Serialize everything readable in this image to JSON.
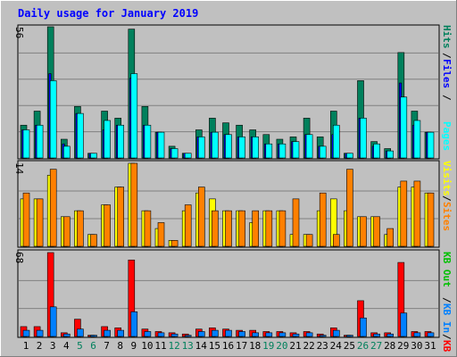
{
  "title": "Daily usage for January 2019",
  "colors": {
    "background": "#c0c0c0",
    "title": "#0000ff",
    "grid": "#808080",
    "hits": "#00805c",
    "files": "#0000ff",
    "pages": "#00ffff",
    "visits": "#ffff00",
    "sites": "#ff8000",
    "kbin": "#0080ff",
    "kbout": "#00c000",
    "kbf": "#ff0000",
    "weekend_label": "#00805c",
    "weekday_label": "#000000"
  },
  "chart_data": [
    {
      "type": "bar",
      "name": "hits-files-pages",
      "ymax_label": "56",
      "ylim": [
        0,
        56
      ],
      "legend": [
        "Hits",
        "Files",
        "Pages"
      ],
      "categories": [
        "1",
        "2",
        "3",
        "4",
        "5",
        "6",
        "7",
        "8",
        "9",
        "10",
        "11",
        "12",
        "13",
        "14",
        "15",
        "16",
        "17",
        "18",
        "19",
        "20",
        "21",
        "22",
        "23",
        "24",
        "25",
        "26",
        "27",
        "28",
        "29",
        "30",
        "31"
      ],
      "weekend_days": [
        "5",
        "6",
        "12",
        "13",
        "19",
        "20",
        "26",
        "27"
      ],
      "series": [
        {
          "name": "Hits",
          "values": [
            14,
            20,
            56,
            8,
            22,
            2,
            20,
            17,
            55,
            22,
            11,
            5,
            2,
            12,
            17,
            15,
            14,
            12,
            10,
            8,
            9,
            17,
            9,
            20,
            2,
            33,
            7,
            4,
            45,
            20,
            11
          ]
        },
        {
          "name": "Files",
          "values": [
            12,
            14,
            36,
            6,
            19,
            2,
            12,
            14,
            34,
            14,
            11,
            4,
            2,
            9,
            11,
            10,
            9,
            9,
            6,
            6,
            7,
            10,
            5,
            10,
            2,
            17,
            5,
            3,
            32,
            14,
            11
          ]
        },
        {
          "name": "Pages",
          "values": [
            12,
            14,
            33,
            5,
            19,
            2,
            16,
            14,
            36,
            14,
            11,
            4,
            2,
            9,
            11,
            10,
            9,
            9,
            6,
            6,
            7,
            10,
            5,
            14,
            2,
            17,
            6,
            3,
            26,
            16,
            11
          ]
        }
      ]
    },
    {
      "type": "bar",
      "name": "visits-sites",
      "ymax_label": "14",
      "ylim": [
        0,
        14
      ],
      "legend": [
        "Visits",
        "Sites"
      ],
      "series": [
        {
          "name": "Visits",
          "values": [
            8,
            8,
            12,
            5,
            6,
            2,
            7,
            10,
            14,
            6,
            3,
            1,
            6,
            9,
            8,
            6,
            6,
            4,
            6,
            6,
            2,
            2,
            6,
            8,
            6,
            5,
            5,
            2,
            10,
            10,
            9
          ]
        },
        {
          "name": "Sites",
          "values": [
            9,
            8,
            13,
            5,
            6,
            2,
            7,
            10,
            14,
            6,
            4,
            1,
            7,
            10,
            6,
            6,
            6,
            6,
            6,
            6,
            8,
            2,
            9,
            2,
            13,
            5,
            5,
            3,
            11,
            11,
            9
          ]
        }
      ]
    },
    {
      "type": "bar",
      "name": "kbin-kbout-kbf",
      "ymax_label": "68",
      "ylim": [
        0,
        68
      ],
      "legend": [
        "KB F",
        "KB In",
        "KB Out"
      ],
      "series": [
        {
          "name": "KB F",
          "values": [
            8,
            8,
            68,
            3,
            14,
            1,
            8,
            7,
            62,
            6,
            4,
            3,
            2,
            6,
            7,
            6,
            5,
            5,
            4,
            4,
            3,
            4,
            2,
            7,
            1,
            29,
            3,
            3,
            60,
            4,
            4
          ]
        },
        {
          "name": "KB In",
          "values": [
            5,
            5,
            24,
            2,
            6,
            1,
            5,
            5,
            20,
            4,
            3,
            2,
            1,
            4,
            5,
            5,
            4,
            3,
            3,
            3,
            2,
            3,
            1,
            5,
            1,
            15,
            2,
            2,
            19,
            3,
            3
          ]
        },
        {
          "name": "KB Out",
          "values": [
            0,
            0,
            0,
            0,
            0,
            0,
            0,
            0,
            0,
            0,
            0,
            0,
            0,
            0,
            0,
            0,
            0,
            0,
            0,
            0,
            0,
            0,
            0,
            0,
            0,
            0,
            0,
            0,
            0,
            0,
            0
          ]
        }
      ]
    }
  ]
}
